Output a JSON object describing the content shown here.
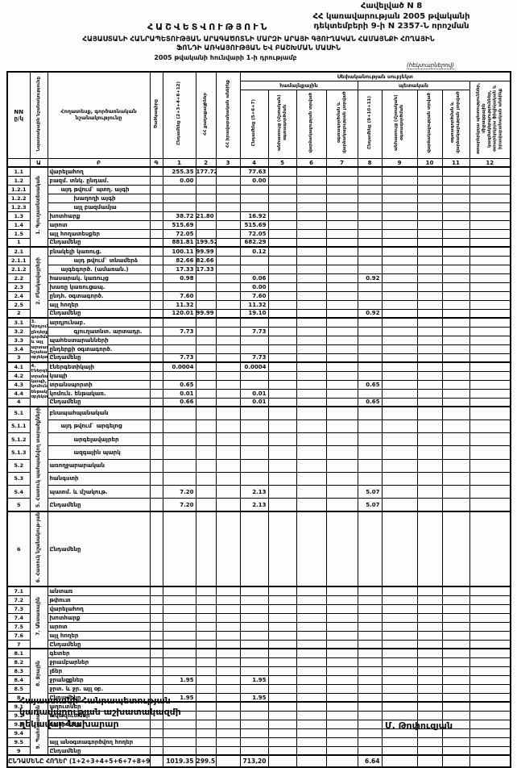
{
  "header": {
    "appendix": "Հավելված N 8",
    "gov_line1": "ՀՀ կառավարության 2005 թվականի",
    "gov_line2": "դեկտեմբերի 9-ի N 2357-Ն որոշման",
    "report_title": "ՀԱՇՎԵՏՎՈՒԹՅՈՒՆ",
    "subject_line1": "ՀԱՅԱՍՏԱՆԻ ՀԱՆՐԱՊԵՏՈՒԹՅԱՆ ԱՐԱԳԱԾՈՏՆԻ ՄԱՐԶԻ ԱՐԱՅԻ ԳՅՈՒՂԱԿԱՆ ՀԱՄԱՅՆՔԻ ՀՈՂԱՅԻՆ",
    "subject_line2": "ՖՈՆԴԻ ԱՌԿԱՅՈՒԹՅԱՆ ԵՎ ԲԱՇԽՄԱՆ ՄԱՍԻՆ",
    "as_of": "2005 թվականի հունվարի 1-ի դրությամբ",
    "units_note": "(հեկտարներով)"
  },
  "table": {
    "subject": "Սեփականության սուբյեկտ",
    "groups": {
      "community": "համայնքային",
      "state": "պետական"
    },
    "cols": {
      "nn": "NN\nը/կ",
      "purpose": "Նպատակային նշանակությունը",
      "landtype": "Հողատեսք, գործառնական նշանակությունը",
      "code": "Ծածկագիրը",
      "c1": "Ընդամենը (2+3+4+8+12)",
      "c2": "ՀՀ քաղաքացիներ",
      "c3": "ՀՀ իրավաբանական անձինք",
      "c4": "Ընդամենը (5+6+7)",
      "c5": "անհատույց (մշտական) օգտագործման",
      "c6": "վարձակալության տրված",
      "c7": "օգտագործման և վարձակալության չտրված",
      "c8": "Ընդամենը (9+10+11)",
      "c9": "անհատույց (մշտական) օգտագործման",
      "c10": "վարձակալության տրված",
      "c11": "օգտագործման և վարձակալության չտրված",
      "c12": "օտարերկրյա պետություններ, միջազգային կազմակերպություններ, օտարերկրյա ֆիզիկական և իրավաբանական անձինք"
    },
    "letters": [
      "",
      "Ա",
      "Բ",
      "Գ",
      "1",
      "2",
      "3",
      "4",
      "5",
      "6",
      "7",
      "8",
      "9",
      "10",
      "11",
      "12"
    ],
    "sections": [
      {
        "label": "1. Գյուղատնտեսական",
        "label_style": "vertical",
        "rows": [
          {
            "num": "1.1",
            "label": "վարելահող",
            "values": {
              "1": "255.35",
              "2": "177.72",
              "4": "77.63"
            }
          },
          {
            "num": "1.2",
            "label": "բազմ. տնկ. ընդամ.",
            "values": {
              "1": "0.00",
              "4": "0.00"
            }
          },
          {
            "num": "1.2.1",
            "label": "այդ թվում` պտղ. այգի",
            "indent": 1
          },
          {
            "num": "1.2.2",
            "label": "խաղողի այգի",
            "indent": 2
          },
          {
            "num": "1.2.3",
            "label": "այլ բազմամյա",
            "indent": 2
          },
          {
            "num": "1.3",
            "label": "խոտհարք",
            "values": {
              "1": "38.72",
              "2": "21.80",
              "4": "16.92"
            }
          },
          {
            "num": "1.4",
            "label": "արոտ",
            "values": {
              "1": "515.69",
              "4": "515.69"
            }
          },
          {
            "num": "1.5",
            "label": "այլ հողատեսքեր",
            "values": {
              "1": "72.05",
              "4": "72.05"
            }
          },
          {
            "num": "1",
            "label": "Ընդամենը",
            "total": true,
            "values": {
              "1": "881.81",
              "2": "199.52",
              "4": "682.29"
            }
          }
        ]
      },
      {
        "label": "2. Բնակավայրերի",
        "label_style": "vertical",
        "rows": [
          {
            "num": "2.1",
            "label": "բնակելի կառուց.",
            "values": {
              "1": "100.11",
              "2": "99.99",
              "4": "0.12"
            }
          },
          {
            "num": "2.1.1",
            "label": "այդ թվում` տնամերձ",
            "indent": 2,
            "values": {
              "1": "82.66",
              "2": "82.66"
            }
          },
          {
            "num": "2.1.2",
            "label": "այգեգործ. (ամառան.)",
            "indent": 1,
            "values": {
              "1": "17.33",
              "2": "17.33"
            }
          },
          {
            "num": "2.2",
            "label": "հասարակ. կառույց",
            "values": {
              "1": "0.98",
              "4": "0.06",
              "8": "0.92"
            }
          },
          {
            "num": "2.3",
            "label": "խառը կառուցապ.",
            "values": {
              "4": "0.00"
            }
          },
          {
            "num": "2.4",
            "label": "ընդհ. օգտագործ.",
            "values": {
              "1": "7.60",
              "4": "7.60"
            }
          },
          {
            "num": "2.5",
            "label": "այլ հողեր",
            "values": {
              "1": "11.32",
              "4": "11.32"
            }
          },
          {
            "num": "2",
            "label": "Ընդամենը",
            "total": true,
            "values": {
              "1": "120.01",
              "2": "99.99",
              "4": "19.10",
              "8": "0.92"
            }
          }
        ]
      },
      {
        "label": "3. Արդյունաբեր.,\nընդերքօգտա-\nգործման և այլ\nարտադրական\nնշանակության\nօբյեկտների",
        "label_style": "tiny",
        "rows": [
          {
            "num": "3.1",
            "label": "արդյունաբ."
          },
          {
            "num": "3.2",
            "label": "գյուղատնտ. արտադր.",
            "indent": 2,
            "values": {
              "1": "7.73",
              "4": "7.73"
            }
          },
          {
            "num": "3.3",
            "label": "պահեստարանների"
          },
          {
            "num": "3.4",
            "label": "ընդերքի օգտագործ."
          },
          {
            "num": "3",
            "label": "Ընդամենը",
            "total": true,
            "values": {
              "1": "7.73",
              "4": "7.73"
            }
          }
        ]
      },
      {
        "label": "4. Էներգետիկայի,\nտրանսպորտի,\nկապի, կոմունալ\nենթակառուցվածք.\nօբյեկտների",
        "label_style": "tiny",
        "rows": [
          {
            "num": "4.1",
            "label": "էներգետիկայի",
            "values": {
              "1": "0.0004",
              "4": "0.0004"
            }
          },
          {
            "num": "4.2",
            "label": "կապի"
          },
          {
            "num": "4.3",
            "label": "տրանսպորտի",
            "values": {
              "1": "0.65",
              "8": "0.65"
            }
          },
          {
            "num": "4.4",
            "label": "կոմուն. ենթակառ.",
            "values": {
              "1": "0.01",
              "4": "0.01"
            }
          },
          {
            "num": "4",
            "label": "Ընդամենը",
            "total": true,
            "values": {
              "1": "0.66",
              "4": "0.01",
              "8": "0.65"
            }
          }
        ]
      },
      {
        "label": "5. Հատուկ պահպանվող տարածքների",
        "label_style": "vertical",
        "rows": [
          {
            "num": "5.1",
            "label": "բնապահպանական"
          },
          {
            "num": "5.1.1",
            "label": "այդ թվում` արգելոց",
            "indent": 1
          },
          {
            "num": "5.1.2",
            "label": "արգելավայրեր",
            "indent": 2
          },
          {
            "num": "5.1.3",
            "label": "ազգային պարկ",
            "indent": 2
          },
          {
            "num": "5.2",
            "label": "առողջարարական"
          },
          {
            "num": "5.3",
            "label": "հանգստի"
          },
          {
            "num": "5.4",
            "label": "պատմ. և մշակութ.",
            "values": {
              "1": "7.20",
              "4": "2.13",
              "8": "5.07"
            }
          },
          {
            "num": "5",
            "label": "Ընդամենը",
            "total": true,
            "values": {
              "1": "7.20",
              "4": "2.13",
              "8": "5.07"
            }
          }
        ]
      },
      {
        "label": "6. Հատուկ նշանակութ-յան",
        "label_style": "vertical",
        "rows": [
          {
            "num": "6",
            "label": "Ընդամենը",
            "tall": true
          }
        ]
      },
      {
        "label": "7. Անտառային",
        "label_style": "vertical",
        "rows": [
          {
            "num": "7.1",
            "label": "անտառ"
          },
          {
            "num": "7.2",
            "label": "թփուտ"
          },
          {
            "num": "7.3",
            "label": "վարելահող"
          },
          {
            "num": "7.4",
            "label": "խոտհարք"
          },
          {
            "num": "7.5",
            "label": "արոտ"
          },
          {
            "num": "7.6",
            "label": "այլ հողեր"
          },
          {
            "num": "7",
            "label": "Ընդամենը",
            "total": true
          }
        ]
      },
      {
        "label": "8. Ջրային",
        "label_style": "vertical",
        "rows": [
          {
            "num": "8.1",
            "label": "գետեր"
          },
          {
            "num": "8.2",
            "label": "ջրամբարներ"
          },
          {
            "num": "8.3",
            "label": "լճեր"
          },
          {
            "num": "8.4",
            "label": "ջրանցքներ",
            "values": {
              "1": "1.95",
              "4": "1.95"
            }
          },
          {
            "num": "8.5",
            "label": "ջրտ. և ջր. այլ օբ."
          },
          {
            "num": "8",
            "label": "Ընդամենը",
            "total": true,
            "values": {
              "1": "1.95",
              "4": "1.95"
            }
          }
        ]
      },
      {
        "label": "9. Պահուստային",
        "label_style": "vertical",
        "rows": [
          {
            "num": "9.1",
            "label": "աղուտներ"
          },
          {
            "num": "9.2",
            "label": "ավազուտներ"
          },
          {
            "num": "9.3",
            "label": "ճահիճներ"
          },
          {
            "num": "9.4",
            "label": ""
          },
          {
            "num": "9.5",
            "label": "այլ անօգտագործվող հողեր"
          },
          {
            "num": "9",
            "label": "Ընդամենը",
            "total": true
          }
        ]
      }
    ],
    "grand_total": {
      "label": "ԸՆԴԱՄԵՆԸ ՀՈՂԵՐ (1+2+3+4+5+6+7+8+9)",
      "values": {
        "1": "1019.35",
        "2": "299.51",
        "4": "713,20",
        "8": "6.64"
      }
    }
  },
  "signature": {
    "line1": "Հայաստանի Հանրապետության",
    "line2": "կառավարության աշխատակազմի",
    "line3": "ղեկավար-նախարար",
    "name": "Մ. Թոփուզյան"
  }
}
